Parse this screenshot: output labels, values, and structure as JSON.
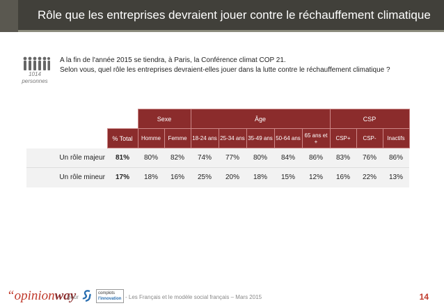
{
  "header": {
    "title": "Rôle que les entreprises devraient jouer contre le réchauffement climatique"
  },
  "sample": {
    "count": "1014",
    "unit": "personnes"
  },
  "question": {
    "line1": "A la fin de l'année 2015 se tiendra, à Paris, la Conférence climat COP 21.",
    "line2": "Selon vous, quel rôle les entreprises devraient-elles jouer dans la lutte contre le réchauffement climatique ?"
  },
  "table": {
    "groups": {
      "sexe": "Sexe",
      "age": "Âge",
      "csp": "CSP"
    },
    "columns": {
      "total": "% Total",
      "homme": "Homme",
      "femme": "Femme",
      "a18_24": "18-24 ans",
      "a25_34": "25-34 ans",
      "a35_49": "35-49 ans",
      "a50_64": "50-64 ans",
      "a65": "65 ans et +",
      "csp_plus": "CSP+",
      "csp_minus": "CSP-",
      "inactifs": "Inactifs"
    },
    "rows": [
      {
        "label": "Un rôle majeur",
        "total": "81%",
        "homme": "80%",
        "femme": "82%",
        "a18_24": "74%",
        "a25_34": "77%",
        "a35_49": "80%",
        "a50_64": "84%",
        "a65": "86%",
        "csp_plus": "83%",
        "csp_minus": "76%",
        "inactifs": "86%"
      },
      {
        "label": "Un rôle mineur",
        "total": "17%",
        "homme": "18%",
        "femme": "16%",
        "a18_24": "25%",
        "a25_34": "20%",
        "a35_49": "18%",
        "a50_64": "15%",
        "a65": "12%",
        "csp_plus": "16%",
        "csp_minus": "22%",
        "inactifs": "13%"
      }
    ]
  },
  "footer": {
    "brand_prefix": "“opinion",
    "brand_suffix": "way",
    "pour": "pour",
    "logo2_line1": "complots",
    "logo2_line2": "l'innovation",
    "caption": "- Les Français et le modèle social français – Mars 2015",
    "page_number": "14"
  },
  "colors": {
    "header_bg": "#41403a",
    "table_header": "#8b2c2c",
    "brand_red": "#c0392b"
  }
}
